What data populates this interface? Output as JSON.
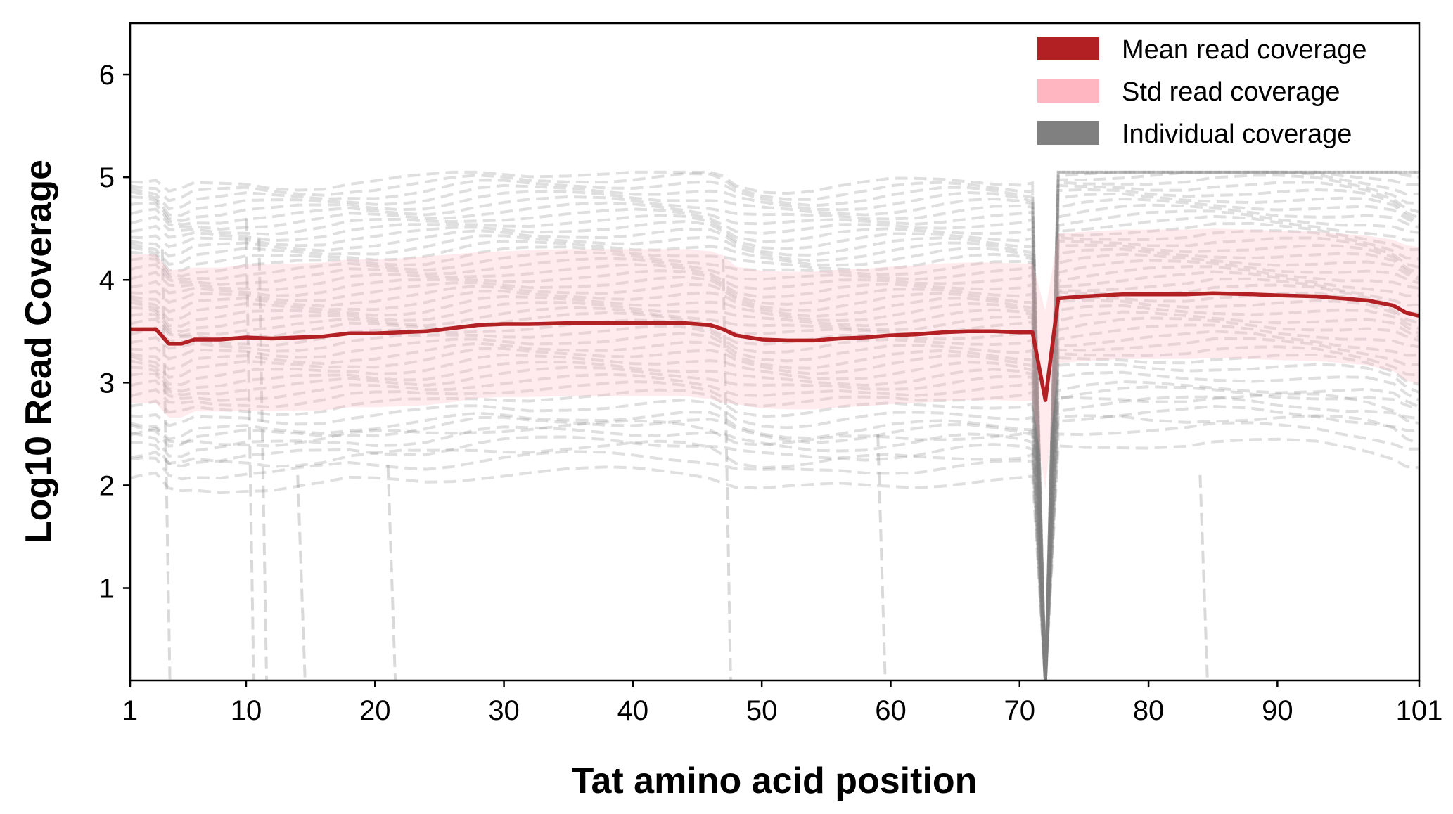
{
  "chart_data": {
    "type": "line",
    "xlabel": "Tat amino acid position",
    "ylabel": "Log10 Read Coverage",
    "xlim": [
      1,
      101
    ],
    "ylim": [
      0.1,
      6.5
    ],
    "x_ticks": [
      1,
      10,
      20,
      30,
      40,
      50,
      60,
      70,
      80,
      90,
      101
    ],
    "y_ticks": [
      1,
      2,
      3,
      4,
      5,
      6
    ],
    "grid": false,
    "legend_position": "top-right",
    "legend": [
      {
        "label": "Mean read coverage",
        "color": "#b22024"
      },
      {
        "label": "Std read coverage",
        "color": "#ffb6c1"
      },
      {
        "label": "Individual coverage",
        "color": "#808080"
      }
    ],
    "x": [
      1,
      2,
      3,
      4,
      5,
      6,
      8,
      10,
      12,
      14,
      16,
      18,
      20,
      22,
      24,
      26,
      28,
      30,
      32,
      35,
      38,
      40,
      42,
      44,
      46,
      47,
      48,
      50,
      52,
      54,
      56,
      58,
      60,
      62,
      64,
      66,
      68,
      70,
      71,
      72,
      73,
      75,
      78,
      80,
      83,
      85,
      88,
      90,
      93,
      95,
      97,
      99,
      100,
      101
    ],
    "series": [
      {
        "name": "Mean read coverage",
        "color": "#b22024",
        "values": [
          3.52,
          3.52,
          3.52,
          3.38,
          3.38,
          3.42,
          3.42,
          3.44,
          3.43,
          3.44,
          3.45,
          3.48,
          3.48,
          3.49,
          3.5,
          3.53,
          3.56,
          3.57,
          3.57,
          3.58,
          3.58,
          3.58,
          3.58,
          3.58,
          3.56,
          3.52,
          3.46,
          3.42,
          3.41,
          3.41,
          3.43,
          3.44,
          3.46,
          3.47,
          3.49,
          3.5,
          3.5,
          3.49,
          3.49,
          2.83,
          3.82,
          3.84,
          3.86,
          3.86,
          3.86,
          3.87,
          3.86,
          3.85,
          3.84,
          3.82,
          3.8,
          3.75,
          3.68,
          3.65
        ]
      },
      {
        "name": "Std read coverage",
        "color": "#ffb6c1",
        "upper": [
          4.25,
          4.25,
          4.25,
          4.1,
          4.1,
          4.12,
          4.12,
          4.15,
          4.15,
          4.16,
          4.17,
          4.2,
          4.2,
          4.21,
          4.23,
          4.25,
          4.27,
          4.28,
          4.29,
          4.3,
          4.3,
          4.3,
          4.3,
          4.3,
          4.28,
          4.24,
          4.13,
          4.09,
          4.08,
          4.08,
          4.1,
          4.11,
          4.13,
          4.14,
          4.16,
          4.17,
          4.17,
          4.16,
          4.16,
          3.7,
          4.45,
          4.47,
          4.49,
          4.49,
          4.49,
          4.5,
          4.49,
          4.48,
          4.47,
          4.45,
          4.43,
          4.39,
          4.34,
          4.32
        ],
        "lower": [
          2.8,
          2.8,
          2.8,
          2.66,
          2.66,
          2.72,
          2.72,
          2.73,
          2.72,
          2.73,
          2.73,
          2.76,
          2.76,
          2.77,
          2.78,
          2.81,
          2.85,
          2.86,
          2.86,
          2.87,
          2.87,
          2.87,
          2.87,
          2.87,
          2.84,
          2.8,
          2.79,
          2.75,
          2.74,
          2.74,
          2.76,
          2.77,
          2.79,
          2.8,
          2.82,
          2.83,
          2.83,
          2.82,
          2.82,
          1.96,
          3.19,
          3.21,
          3.23,
          3.23,
          3.23,
          3.24,
          3.23,
          3.22,
          3.21,
          3.19,
          3.17,
          3.11,
          3.02,
          2.98
        ]
      },
      {
        "name": "Individual coverage",
        "color": "#808080",
        "note_count": 45,
        "low_offsets": [
          -1.45,
          -1.3,
          -1.15,
          -1.05,
          -0.95,
          -0.9,
          -0.8,
          -0.7,
          -0.62,
          -0.55,
          -0.48,
          -0.42,
          -0.35,
          -0.28,
          -0.22,
          -0.15,
          -0.08,
          -0.02,
          0.05,
          0.1,
          0.16,
          0.22,
          0.28,
          0.34,
          0.4,
          0.46,
          0.52,
          0.58,
          0.64,
          0.7,
          0.76,
          0.82,
          0.88,
          0.94,
          1.0,
          1.06,
          1.12,
          1.18,
          1.24,
          1.3,
          1.36,
          1.42,
          1.48,
          -1.2,
          -1.0
        ]
      }
    ]
  }
}
